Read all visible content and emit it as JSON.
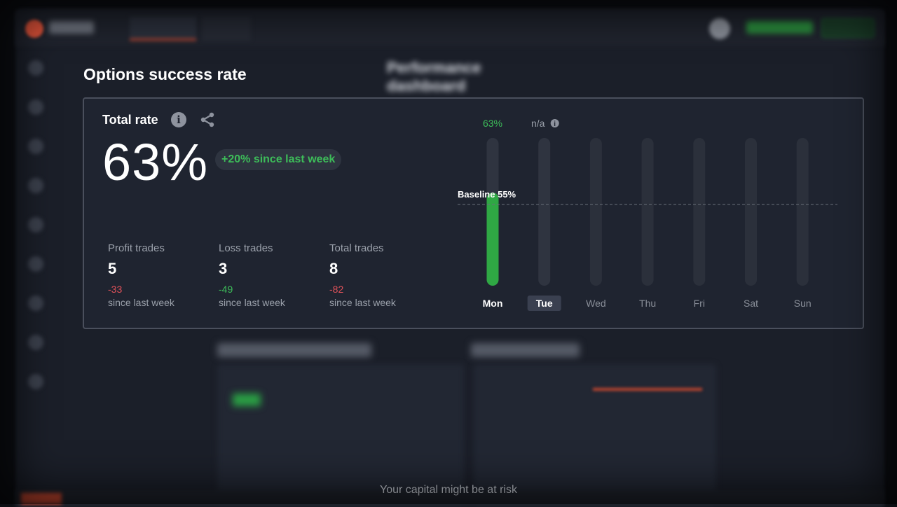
{
  "background": {
    "title": "Performance dashboard"
  },
  "section_title": "Options success rate",
  "total_rate": {
    "label": "Total rate",
    "value": "63%",
    "delta": "+20% since last week",
    "stats": [
      {
        "label": "Profit trades",
        "value": "5",
        "change": "-33",
        "change_color": "#e0525a",
        "since": "since last week"
      },
      {
        "label": "Loss trades",
        "value": "3",
        "change": "-49",
        "change_color": "#3dbc59",
        "since": "since last week"
      },
      {
        "label": "Total trades",
        "value": "8",
        "change": "-82",
        "change_color": "#e0525a",
        "since": "since last week"
      }
    ]
  },
  "chart_data": {
    "type": "bar",
    "categories": [
      "Mon",
      "Tue",
      "Wed",
      "Thu",
      "Fri",
      "Sat",
      "Sun"
    ],
    "values": [
      63,
      null,
      null,
      null,
      null,
      null,
      null
    ],
    "value_labels": [
      "63%",
      "n/a",
      "",
      "",
      "",
      "",
      ""
    ],
    "selected_category": "Tue",
    "baseline": {
      "label": "Baseline 55%",
      "value": 55
    },
    "ylim": [
      0,
      100
    ],
    "bar_color": "#2fa844",
    "track_color": "#2b303b"
  },
  "footer": {
    "risk_note": "Your capital might be at risk"
  }
}
